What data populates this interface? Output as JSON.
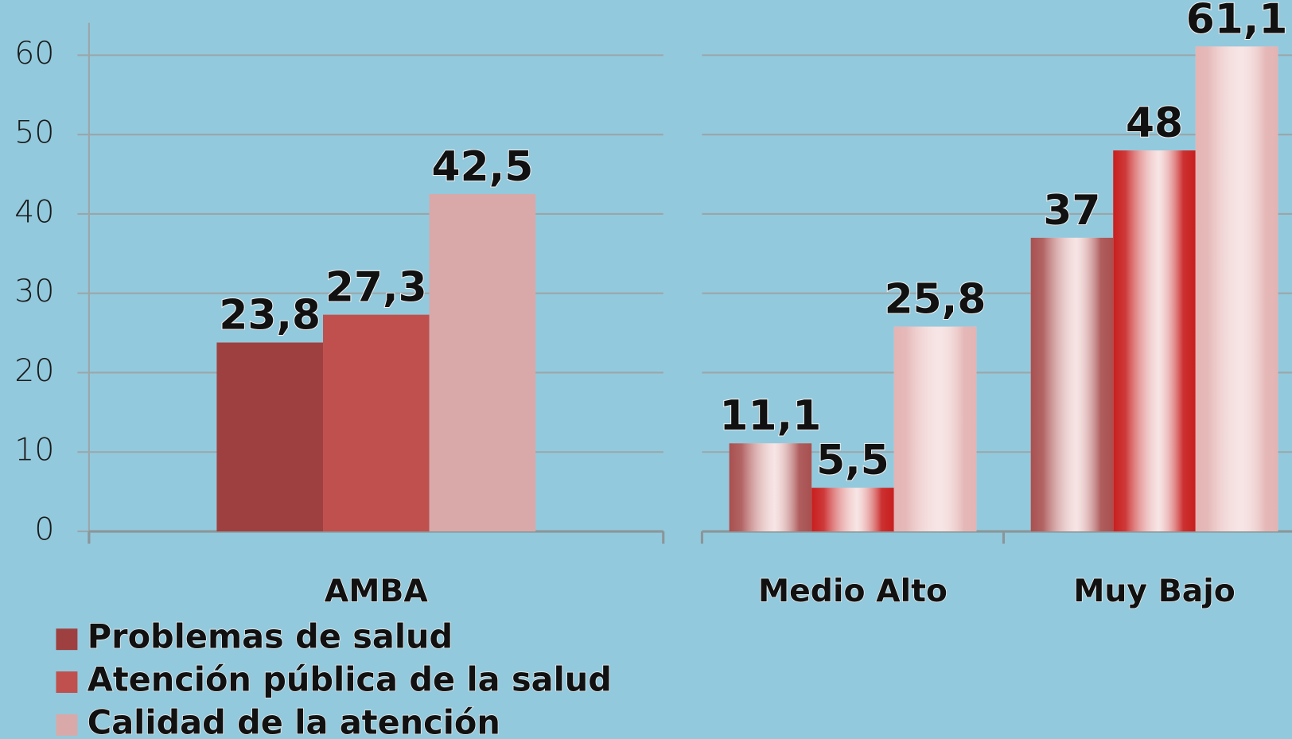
{
  "chart_data": [
    {
      "type": "bar",
      "categories": [
        "AMBA"
      ],
      "series": [
        {
          "name": "Problemas de salud",
          "color": "#9e4040",
          "values": [
            23.8
          ],
          "value_labels": [
            "23,8"
          ]
        },
        {
          "name": "Atención pública de la salud",
          "color": "#c0504d",
          "values": [
            27.3
          ],
          "value_labels": [
            "27,3"
          ]
        },
        {
          "name": "Calidad de la atención",
          "color": "#d9a9a9",
          "values": [
            42.5
          ],
          "value_labels": [
            "42,5"
          ]
        }
      ],
      "ylim": [
        0,
        62
      ],
      "yticks": [
        0,
        10,
        20,
        30,
        40,
        50,
        60
      ],
      "grid": true,
      "legend": "bottom-left",
      "gradient": false
    },
    {
      "type": "bar",
      "categories": [
        "Medio Alto",
        "Muy Bajo"
      ],
      "series": [
        {
          "color": "#a85050",
          "values": [
            11.1,
            37
          ],
          "value_labels": [
            "11,1",
            "37"
          ]
        },
        {
          "color": "#c81e1e",
          "values": [
            5.5,
            48
          ],
          "value_labels": [
            "5,5",
            "48"
          ]
        },
        {
          "color": "#e4b4b4",
          "values": [
            25.8,
            61.1
          ],
          "value_labels": [
            "25,8",
            "61,1"
          ]
        }
      ],
      "ylim": [
        0,
        62
      ],
      "yticks": [
        0,
        10,
        20,
        30,
        40,
        50,
        60
      ],
      "grid": true,
      "show_tick_labels": false,
      "gradient": true
    }
  ]
}
